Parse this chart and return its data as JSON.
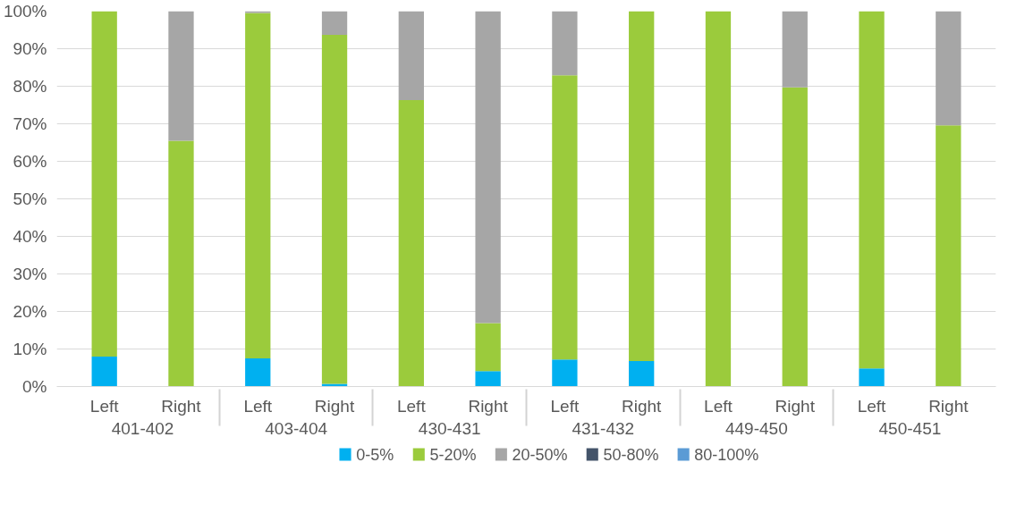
{
  "chart_data": {
    "type": "bar",
    "stacked": true,
    "categories": [
      "Left",
      "Right",
      "Left",
      "Right",
      "Left",
      "Right",
      "Left",
      "Right",
      "Left",
      "Right",
      "Left",
      "Right"
    ],
    "annotations": [
      "401-402",
      "403-404",
      "430-431",
      "431-432",
      "449-450",
      "450-451"
    ],
    "series": [
      {
        "name": "0-5%",
        "color": "#00b0f0",
        "values": [
          8.0,
          0,
          7.5,
          0.7,
          0,
          4.1,
          7.2,
          6.8,
          0,
          0,
          4.8,
          0
        ]
      },
      {
        "name": "5-20%",
        "color": "#9bcb3c",
        "values": [
          92.0,
          65.5,
          92.0,
          93.0,
          76.3,
          12.8,
          75.7,
          93.2,
          100,
          79.7,
          95.2,
          69.6
        ]
      },
      {
        "name": "20-50%",
        "color": "#a6a6a6",
        "values": [
          0,
          34.5,
          0.5,
          6.3,
          23.7,
          83.1,
          17.1,
          0,
          0,
          20.3,
          0,
          30.4
        ]
      },
      {
        "name": "50-80%",
        "color": "#44546a",
        "values": [
          0,
          0,
          0,
          0,
          0,
          0,
          0,
          0,
          0,
          0,
          0,
          0
        ]
      },
      {
        "name": "80-100%",
        "color": "#5b9bd5",
        "values": [
          0,
          0,
          0,
          0,
          0,
          0,
          0,
          0,
          0,
          0,
          0,
          0
        ]
      }
    ],
    "ylim": [
      0,
      100
    ],
    "yticks": [
      {
        "value": 0,
        "label": "0%"
      },
      {
        "value": 10,
        "label": "10%"
      },
      {
        "value": 20,
        "label": "20%"
      },
      {
        "value": 30,
        "label": "30%"
      },
      {
        "value": 40,
        "label": "40%"
      },
      {
        "value": 50,
        "label": "50%"
      },
      {
        "value": 60,
        "label": "60%"
      },
      {
        "value": 70,
        "label": "70%"
      },
      {
        "value": 80,
        "label": "80%"
      },
      {
        "value": 90,
        "label": "90%"
      },
      {
        "value": 100,
        "label": "100%"
      }
    ],
    "grid": "y",
    "legend": "bottom"
  }
}
